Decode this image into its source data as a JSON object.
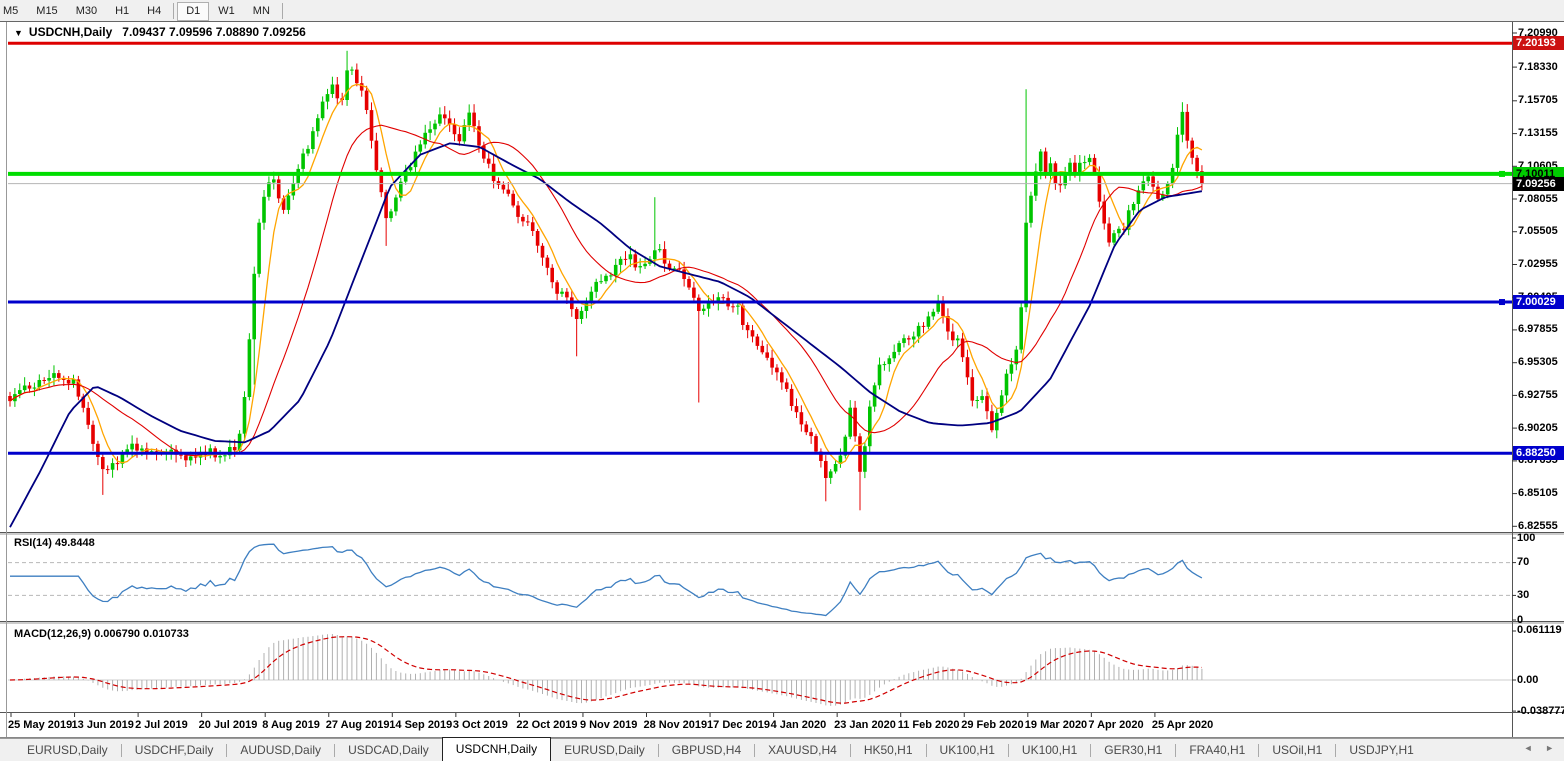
{
  "toolbar": {
    "timeframes": [
      {
        "label": "M5",
        "active": false
      },
      {
        "label": "M15",
        "active": false
      },
      {
        "label": "M30",
        "active": false
      },
      {
        "label": "H1",
        "active": false
      },
      {
        "label": "H4",
        "active": false
      },
      {
        "label": "D1",
        "active": true
      },
      {
        "label": "W1",
        "active": false
      },
      {
        "label": "MN",
        "active": false
      }
    ]
  },
  "chart": {
    "title": {
      "dropdown_icon": "▼",
      "symbol": "USDCNH,Daily",
      "ohlc": "7.09437 7.09596 7.08890 7.09256"
    },
    "price_axis_ticks": [
      "7.20990",
      "7.18330",
      "7.15705",
      "7.13155",
      "7.10605",
      "7.08055",
      "7.05505",
      "7.02955",
      "7.00405",
      "6.97855",
      "6.95305",
      "6.92755",
      "6.90205",
      "6.87655",
      "6.85105",
      "6.82555"
    ],
    "price_badges": [
      {
        "text": "7.20193",
        "price": 7.20193,
        "bg": "#cc1111",
        "fg": "#ffffff"
      },
      {
        "text": "7.10011",
        "price": 7.10011,
        "bg": "#00cc00",
        "fg": "#000000"
      },
      {
        "text": "7.09256",
        "price": 7.09256,
        "bg": "#000000",
        "fg": "#ffffff"
      },
      {
        "text": "7.00029",
        "price": 7.00029,
        "bg": "#0000cc",
        "fg": "#ffffff"
      },
      {
        "text": "6.88250",
        "price": 6.8825,
        "bg": "#0000cc",
        "fg": "#ffffff"
      }
    ],
    "levels": [
      {
        "price": 7.20193,
        "color": "#dd0000",
        "thickness": 3,
        "handle": false
      },
      {
        "price": 7.10011,
        "color": "#00dd00",
        "thickness": 4,
        "handle": true
      },
      {
        "price": 7.09256,
        "color": "#b4b4b4",
        "thickness": 1,
        "handle": false
      },
      {
        "price": 7.00029,
        "color": "#0000cc",
        "thickness": 3,
        "handle": true
      },
      {
        "price": 6.8825,
        "color": "#0000cc",
        "thickness": 3,
        "handle": false
      }
    ],
    "date_labels": [
      "25 May 2019",
      "13 Jun 2019",
      "2 Jul 2019",
      "20 Jul 2019",
      "8 Aug 2019",
      "27 Aug 2019",
      "14 Sep 2019",
      "3 Oct 2019",
      "22 Oct 2019",
      "9 Nov 2019",
      "28 Nov 2019",
      "17 Dec 2019",
      "4 Jan 2020",
      "23 Jan 2020",
      "11 Feb 2020",
      "29 Feb 2020",
      "19 Mar 2020",
      "7 Apr 2020",
      "25 Apr 2020"
    ],
    "chart_data": {
      "type": "candlestick",
      "symbol": "USDCNH",
      "timeframe": "Daily",
      "current_ohlc": {
        "open": "7.09437",
        "high": "7.09596",
        "low": "7.08890",
        "close": "7.09256"
      },
      "y_axis_range": [
        6.82555,
        7.2099
      ],
      "horizontal_levels": [
        7.20193,
        7.10011,
        7.09256,
        7.00029,
        6.8825
      ],
      "close_waypoints": [
        [
          8,
          6.925
        ],
        [
          30,
          6.934
        ],
        [
          55,
          6.944
        ],
        [
          75,
          6.936
        ],
        [
          90,
          6.9
        ],
        [
          105,
          6.866
        ],
        [
          118,
          6.878
        ],
        [
          132,
          6.888
        ],
        [
          150,
          6.881
        ],
        [
          168,
          6.886
        ],
        [
          188,
          6.878
        ],
        [
          208,
          6.884
        ],
        [
          222,
          6.879
        ],
        [
          238,
          6.89
        ],
        [
          246,
          6.935
        ],
        [
          252,
          7.005
        ],
        [
          258,
          7.058
        ],
        [
          266,
          7.092
        ],
        [
          274,
          7.098
        ],
        [
          282,
          7.072
        ],
        [
          292,
          7.09
        ],
        [
          302,
          7.112
        ],
        [
          312,
          7.128
        ],
        [
          322,
          7.154
        ],
        [
          332,
          7.172
        ],
        [
          340,
          7.15
        ],
        [
          348,
          7.183
        ],
        [
          356,
          7.176
        ],
        [
          365,
          7.156
        ],
        [
          375,
          7.11
        ],
        [
          386,
          7.062
        ],
        [
          396,
          7.084
        ],
        [
          406,
          7.102
        ],
        [
          418,
          7.118
        ],
        [
          430,
          7.136
        ],
        [
          440,
          7.148
        ],
        [
          450,
          7.136
        ],
        [
          460,
          7.124
        ],
        [
          468,
          7.148
        ],
        [
          478,
          7.126
        ],
        [
          488,
          7.106
        ],
        [
          498,
          7.09
        ],
        [
          508,
          7.086
        ],
        [
          518,
          7.068
        ],
        [
          528,
          7.062
        ],
        [
          538,
          7.042
        ],
        [
          548,
          7.026
        ],
        [
          558,
          7.008
        ],
        [
          568,
          7.002
        ],
        [
          578,
          6.988
        ],
        [
          588,
          7.004
        ],
        [
          598,
          7.016
        ],
        [
          608,
          7.022
        ],
        [
          618,
          7.03
        ],
        [
          628,
          7.036
        ],
        [
          638,
          7.028
        ],
        [
          648,
          7.034
        ],
        [
          656,
          7.044
        ],
        [
          666,
          7.03
        ],
        [
          676,
          7.028
        ],
        [
          686,
          7.018
        ],
        [
          698,
          6.996
        ],
        [
          708,
          7.0
        ],
        [
          718,
          7.006
        ],
        [
          728,
          6.998
        ],
        [
          738,
          6.994
        ],
        [
          748,
          6.976
        ],
        [
          758,
          6.964
        ],
        [
          768,
          6.954
        ],
        [
          778,
          6.946
        ],
        [
          788,
          6.928
        ],
        [
          798,
          6.912
        ],
        [
          808,
          6.898
        ],
        [
          818,
          6.882
        ],
        [
          828,
          6.862
        ],
        [
          838,
          6.874
        ],
        [
          846,
          6.896
        ],
        [
          852,
          6.925
        ],
        [
          858,
          6.862
        ],
        [
          864,
          6.88
        ],
        [
          872,
          6.93
        ],
        [
          880,
          6.952
        ],
        [
          890,
          6.958
        ],
        [
          900,
          6.968
        ],
        [
          910,
          6.974
        ],
        [
          920,
          6.98
        ],
        [
          930,
          6.99
        ],
        [
          938,
          6.998
        ],
        [
          944,
          6.986
        ],
        [
          950,
          6.972
        ],
        [
          956,
          6.976
        ],
        [
          962,
          6.958
        ],
        [
          968,
          6.938
        ],
        [
          974,
          6.92
        ],
        [
          980,
          6.932
        ],
        [
          986,
          6.918
        ],
        [
          992,
          6.902
        ],
        [
          998,
          6.914
        ],
        [
          1004,
          6.934
        ],
        [
          1010,
          6.952
        ],
        [
          1016,
          6.964
        ],
        [
          1022,
          7.002
        ],
        [
          1028,
          7.09
        ],
        [
          1033,
          7.082
        ],
        [
          1039,
          7.126
        ],
        [
          1045,
          7.1
        ],
        [
          1051,
          7.108
        ],
        [
          1057,
          7.088
        ],
        [
          1063,
          7.096
        ],
        [
          1069,
          7.112
        ],
        [
          1075,
          7.102
        ],
        [
          1081,
          7.108
        ],
        [
          1087,
          7.114
        ],
        [
          1093,
          7.106
        ],
        [
          1099,
          7.082
        ],
        [
          1105,
          7.058
        ],
        [
          1111,
          7.046
        ],
        [
          1117,
          7.062
        ],
        [
          1123,
          7.058
        ],
        [
          1129,
          7.07
        ],
        [
          1135,
          7.082
        ],
        [
          1141,
          7.096
        ],
        [
          1147,
          7.098
        ],
        [
          1153,
          7.088
        ],
        [
          1159,
          7.082
        ],
        [
          1165,
          7.09
        ],
        [
          1171,
          7.098
        ],
        [
          1177,
          7.132
        ],
        [
          1183,
          7.148
        ],
        [
          1189,
          7.12
        ],
        [
          1195,
          7.106
        ],
        [
          1202,
          7.0926
        ]
      ],
      "wick_spikes": [
        [
          105,
          "low",
          6.85
        ],
        [
          252,
          "low",
          6.936
        ],
        [
          348,
          "high",
          7.196
        ],
        [
          386,
          "low",
          7.044
        ],
        [
          578,
          "low",
          6.958
        ],
        [
          656,
          "high",
          7.082
        ],
        [
          698,
          "low",
          6.922
        ],
        [
          828,
          "low",
          6.845
        ],
        [
          858,
          "low",
          6.838
        ],
        [
          1028,
          "high",
          7.166
        ],
        [
          1183,
          "high",
          7.156
        ]
      ],
      "ma_slow_waypoints": [
        [
          8,
          6.822
        ],
        [
          40,
          6.868
        ],
        [
          70,
          6.915
        ],
        [
          95,
          6.935
        ],
        [
          120,
          6.926
        ],
        [
          150,
          6.912
        ],
        [
          180,
          6.9
        ],
        [
          215,
          6.892
        ],
        [
          245,
          6.891
        ],
        [
          270,
          6.9
        ],
        [
          300,
          6.924
        ],
        [
          330,
          6.97
        ],
        [
          360,
          7.03
        ],
        [
          390,
          7.09
        ],
        [
          420,
          7.115
        ],
        [
          450,
          7.124
        ],
        [
          480,
          7.121
        ],
        [
          510,
          7.108
        ],
        [
          540,
          7.096
        ],
        [
          570,
          7.078
        ],
        [
          600,
          7.062
        ],
        [
          630,
          7.042
        ],
        [
          660,
          7.028
        ],
        [
          690,
          7.022
        ],
        [
          720,
          7.016
        ],
        [
          750,
          7.004
        ],
        [
          780,
          6.986
        ],
        [
          810,
          6.968
        ],
        [
          840,
          6.95
        ],
        [
          870,
          6.93
        ],
        [
          900,
          6.915
        ],
        [
          930,
          6.906
        ],
        [
          960,
          6.904
        ],
        [
          990,
          6.906
        ],
        [
          1020,
          6.915
        ],
        [
          1050,
          6.94
        ],
        [
          1090,
          6.998
        ],
        [
          1115,
          7.045
        ],
        [
          1140,
          7.072
        ],
        [
          1165,
          7.082
        ],
        [
          1205,
          7.087
        ]
      ]
    }
  },
  "rsi": {
    "label": "RSI(14)",
    "value": "49.8448",
    "scale": [
      {
        "label": "100",
        "v": 100
      },
      {
        "label": "70",
        "v": 70
      },
      {
        "label": "30",
        "v": 30
      },
      {
        "label": "0",
        "v": 0
      }
    ],
    "dashed_levels": [
      70,
      30
    ]
  },
  "macd": {
    "label": "MACD(12,26,9)",
    "values": "0.006790 0.010733",
    "scale": [
      {
        "label": "0.061119",
        "v": 0.061119
      },
      {
        "label": "0.00",
        "v": 0
      },
      {
        "label": "-0.038777",
        "v": -0.038777
      }
    ]
  },
  "tabs": {
    "items": [
      {
        "label": "EURUSD,Daily",
        "active": false
      },
      {
        "label": "USDCHF,Daily",
        "active": false
      },
      {
        "label": "AUDUSD,Daily",
        "active": false
      },
      {
        "label": "USDCAD,Daily",
        "active": false
      },
      {
        "label": "USDCNH,Daily",
        "active": true
      },
      {
        "label": "EURUSD,Daily",
        "active": false
      },
      {
        "label": "GBPUSD,H4",
        "active": false
      },
      {
        "label": "XAUUSD,H4",
        "active": false
      },
      {
        "label": "HK50,H1",
        "active": false
      },
      {
        "label": "UK100,H1",
        "active": false
      },
      {
        "label": "UK100,H1",
        "active": false
      },
      {
        "label": "GER30,H1",
        "active": false
      },
      {
        "label": "FRA40,H1",
        "active": false
      },
      {
        "label": "USOil,H1",
        "active": false
      },
      {
        "label": "USDJPY,H1",
        "active": false
      }
    ],
    "nav_left": "◄",
    "nav_right": "►"
  },
  "colors": {
    "up": "#00c400",
    "down": "#e60000",
    "ma_fast": "#ffa500",
    "ma_mid": "#e00000",
    "ma_slow": "#000080",
    "rsi_line": "#3e7fc1",
    "macd_hist": "#b0b0b0",
    "macd_signal": "#d00000"
  }
}
